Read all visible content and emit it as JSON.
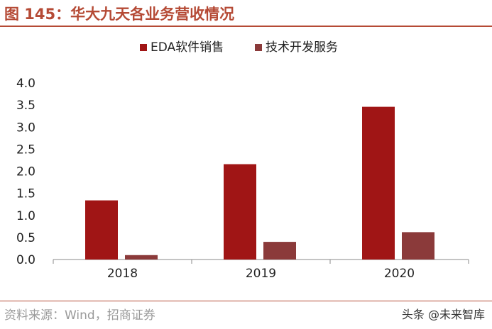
{
  "figure_title": "图 145：华大九天各业务营收情况",
  "source_note": "资料来源：Wind，招商证券",
  "watermark": "头条 @未来智库",
  "colors": {
    "title": "#b54a35",
    "eda_series": "#a01515",
    "tech_series": "#8b3a3a",
    "axis": "#888888"
  },
  "chart_data": {
    "type": "bar",
    "categories": [
      "2018",
      "2019",
      "2020"
    ],
    "series": [
      {
        "name": "EDA软件销售",
        "values": [
          1.34,
          2.16,
          3.46
        ]
      },
      {
        "name": "技术开发服务",
        "values": [
          0.1,
          0.4,
          0.62
        ]
      }
    ],
    "yticks": [
      "4.0",
      "3.5",
      "3.0",
      "2.5",
      "2.0",
      "1.5",
      "1.0",
      "0.5",
      "0.0"
    ],
    "ylim": [
      0,
      4
    ],
    "grid": false,
    "legend_position": "top-center"
  }
}
